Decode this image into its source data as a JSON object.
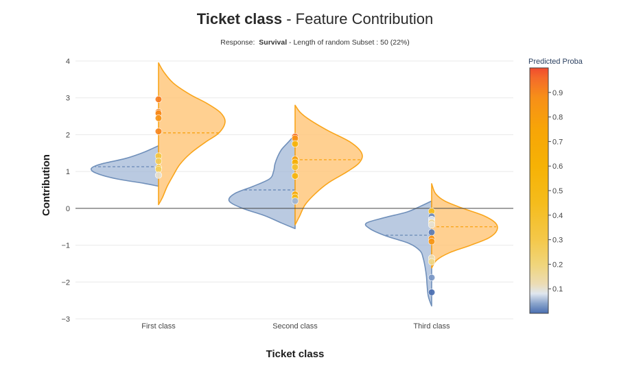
{
  "chart_data": {
    "type": "violin",
    "title_bold": "Ticket class",
    "title_rest": " - Feature Contribution",
    "subtitle_prefix": "Response:  ",
    "subtitle_bold": "Survival",
    "subtitle_rest": " - Length of random Subset : 50 (22%)",
    "xlabel": "Ticket class",
    "ylabel": "Contribution",
    "categories": [
      "First class",
      "Second class",
      "Third class"
    ],
    "ylim": [
      -3,
      4
    ],
    "yticks": [
      4,
      3,
      2,
      1,
      0,
      -1,
      -2,
      -3
    ],
    "ytick_labels": [
      "4",
      "3",
      "2",
      "1",
      "0",
      "−1",
      "−2",
      "−3"
    ],
    "colorbar": {
      "title": "Predicted Proba",
      "ticks": [
        "0.9",
        "0.8",
        "0.7",
        "0.6",
        "0.5",
        "0.4",
        "0.3",
        "0.2",
        "0.1"
      ],
      "tick_values": [
        0.9,
        0.8,
        0.7,
        0.6,
        0.5,
        0.4,
        0.3,
        0.2,
        0.1
      ],
      "range": [
        0,
        1
      ]
    },
    "colors": {
      "left_fill": "#9fb6d6",
      "left_line": "#6f8fba",
      "right_fill": "#ffc476",
      "right_line": "#f9a51b"
    },
    "violins": [
      {
        "category": "First class",
        "left": {
          "y_min": 0.6,
          "y_max": 1.7,
          "median": 1.13,
          "profile": [
            [
              0.6,
              0.0
            ],
            [
              0.68,
              0.22
            ],
            [
              0.8,
              0.62
            ],
            [
              0.95,
              0.92
            ],
            [
              1.08,
              1.0
            ],
            [
              1.2,
              0.86
            ],
            [
              1.35,
              0.5
            ],
            [
              1.5,
              0.25
            ],
            [
              1.6,
              0.12
            ],
            [
              1.7,
              0.0
            ]
          ]
        },
        "right": {
          "y_min": 0.1,
          "y_max": 3.95,
          "median": 2.05,
          "profile": [
            [
              0.1,
              0.0
            ],
            [
              0.3,
              0.06
            ],
            [
              0.6,
              0.13
            ],
            [
              0.9,
              0.22
            ],
            [
              1.2,
              0.32
            ],
            [
              1.5,
              0.48
            ],
            [
              1.8,
              0.7
            ],
            [
              2.05,
              0.9
            ],
            [
              2.35,
              0.99
            ],
            [
              2.6,
              0.92
            ],
            [
              2.85,
              0.72
            ],
            [
              3.1,
              0.46
            ],
            [
              3.4,
              0.22
            ],
            [
              3.7,
              0.08
            ],
            [
              3.95,
              0.0
            ]
          ]
        }
      },
      {
        "category": "Second class",
        "left": {
          "y_min": -0.55,
          "y_max": 2.0,
          "median": 0.5,
          "profile": [
            [
              -0.55,
              0.0
            ],
            [
              -0.4,
              0.2
            ],
            [
              -0.2,
              0.45
            ],
            [
              0.0,
              0.78
            ],
            [
              0.2,
              0.98
            ],
            [
              0.4,
              0.9
            ],
            [
              0.6,
              0.62
            ],
            [
              0.8,
              0.38
            ],
            [
              1.0,
              0.32
            ],
            [
              1.2,
              0.3
            ],
            [
              1.4,
              0.26
            ],
            [
              1.6,
              0.2
            ],
            [
              1.8,
              0.1
            ],
            [
              2.0,
              0.0
            ]
          ]
        },
        "right": {
          "y_min": -0.45,
          "y_max": 2.8,
          "median": 1.32,
          "profile": [
            [
              -0.45,
              0.0
            ],
            [
              -0.2,
              0.07
            ],
            [
              0.1,
              0.15
            ],
            [
              0.4,
              0.3
            ],
            [
              0.7,
              0.5
            ],
            [
              1.0,
              0.78
            ],
            [
              1.25,
              0.96
            ],
            [
              1.5,
              0.99
            ],
            [
              1.8,
              0.82
            ],
            [
              2.1,
              0.5
            ],
            [
              2.4,
              0.22
            ],
            [
              2.6,
              0.08
            ],
            [
              2.8,
              0.0
            ]
          ]
        }
      },
      {
        "category": "Third class",
        "left": {
          "y_min": -2.65,
          "y_max": 0.2,
          "median": -0.73,
          "profile": [
            [
              -2.65,
              0.0
            ],
            [
              -2.4,
              0.05
            ],
            [
              -2.1,
              0.07
            ],
            [
              -1.85,
              0.08
            ],
            [
              -1.6,
              0.1
            ],
            [
              -1.35,
              0.13
            ],
            [
              -1.15,
              0.18
            ],
            [
              -0.95,
              0.35
            ],
            [
              -0.75,
              0.7
            ],
            [
              -0.55,
              0.95
            ],
            [
              -0.4,
              1.0
            ],
            [
              -0.25,
              0.72
            ],
            [
              -0.1,
              0.38
            ],
            [
              0.05,
              0.18
            ],
            [
              0.2,
              0.0
            ]
          ]
        },
        "right": {
          "y_min": -1.62,
          "y_max": 0.67,
          "median": -0.5,
          "profile": [
            [
              -1.62,
              0.0
            ],
            [
              -1.4,
              0.08
            ],
            [
              -1.2,
              0.28
            ],
            [
              -1.0,
              0.6
            ],
            [
              -0.8,
              0.88
            ],
            [
              -0.6,
              1.0
            ],
            [
              -0.4,
              0.98
            ],
            [
              -0.2,
              0.8
            ],
            [
              0.0,
              0.48
            ],
            [
              0.2,
              0.2
            ],
            [
              0.4,
              0.06
            ],
            [
              0.67,
              0.0
            ]
          ]
        }
      }
    ],
    "points": [
      {
        "category": "First class",
        "y": 2.96,
        "proba": 0.92
      },
      {
        "category": "First class",
        "y": 2.62,
        "proba": 0.9
      },
      {
        "category": "First class",
        "y": 2.58,
        "proba": 0.89
      },
      {
        "category": "First class",
        "y": 2.45,
        "proba": 0.86
      },
      {
        "category": "First class",
        "y": 2.09,
        "proba": 0.9
      },
      {
        "category": "First class",
        "y": 1.42,
        "proba": 0.33
      },
      {
        "category": "First class",
        "y": 1.28,
        "proba": 0.27
      },
      {
        "category": "First class",
        "y": 1.1,
        "proba": 0.37
      },
      {
        "category": "First class",
        "y": 1.06,
        "proba": 0.25
      },
      {
        "category": "First class",
        "y": 0.9,
        "proba": 0.1
      },
      {
        "category": "Second class",
        "y": 1.95,
        "proba": 0.95
      },
      {
        "category": "Second class",
        "y": 1.9,
        "proba": 0.86
      },
      {
        "category": "Second class",
        "y": 1.75,
        "proba": 0.58
      },
      {
        "category": "Second class",
        "y": 1.33,
        "proba": 0.78
      },
      {
        "category": "Second class",
        "y": 1.25,
        "proba": 0.62
      },
      {
        "category": "Second class",
        "y": 1.12,
        "proba": 0.4
      },
      {
        "category": "Second class",
        "y": 0.88,
        "proba": 0.55
      },
      {
        "category": "Second class",
        "y": 0.38,
        "proba": 0.7
      },
      {
        "category": "Second class",
        "y": 0.3,
        "proba": 0.48
      },
      {
        "category": "Second class",
        "y": 0.2,
        "proba": 0.05
      },
      {
        "category": "Third class",
        "y": -0.08,
        "proba": 0.45
      },
      {
        "category": "Third class",
        "y": -0.22,
        "proba": 0.02
      },
      {
        "category": "Third class",
        "y": -0.3,
        "proba": 0.08
      },
      {
        "category": "Third class",
        "y": -0.38,
        "proba": 0.15
      },
      {
        "category": "Third class",
        "y": -0.45,
        "proba": 0.1
      },
      {
        "category": "Third class",
        "y": -0.65,
        "proba": 0.01
      },
      {
        "category": "Third class",
        "y": -0.82,
        "proba": 0.86
      },
      {
        "category": "Third class",
        "y": -0.9,
        "proba": 0.84
      },
      {
        "category": "Third class",
        "y": -1.35,
        "proba": 0.12
      },
      {
        "category": "Third class",
        "y": -1.45,
        "proba": 0.18
      },
      {
        "category": "Third class",
        "y": -1.88,
        "proba": 0.03
      },
      {
        "category": "Third class",
        "y": -2.28,
        "proba": 0.0
      }
    ]
  }
}
